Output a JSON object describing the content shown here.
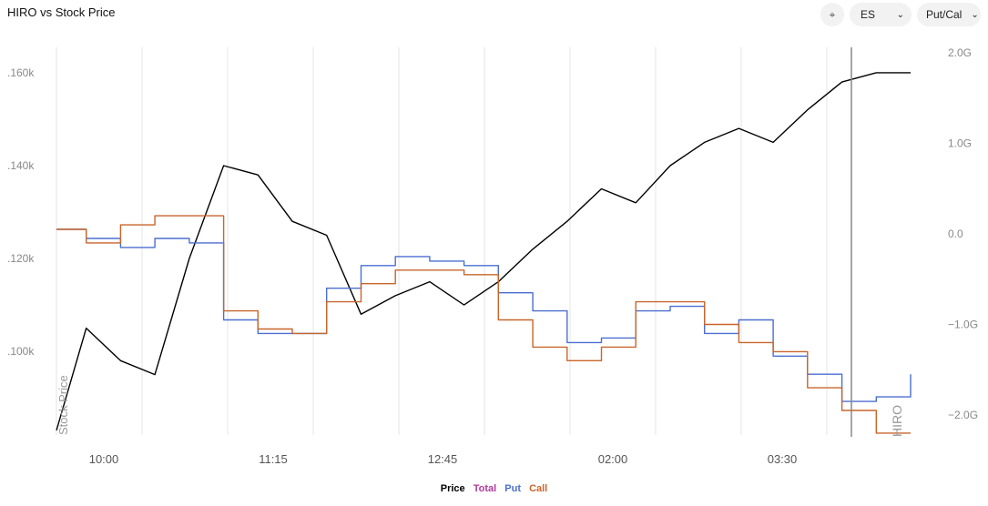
{
  "title": "HIRO vs Stock Price",
  "toolbar": {
    "collapse_icon": "collapse-icon",
    "symbol": "ES",
    "mode": "Put/Cal"
  },
  "colors": {
    "price": "#000000",
    "total": "#b03a9e",
    "put": "#4a6fd0",
    "call": "#c8652a",
    "grid": "#e4e4e4",
    "axis_text": "#888888",
    "cursor": "#888888"
  },
  "chart_data": {
    "type": "line",
    "x_ticks": [
      "10:00",
      "11:15",
      "12:45",
      "02:00",
      "03:30"
    ],
    "y_left": {
      "label": "Stock Price",
      "ticks": [
        ".160k",
        ".140k",
        ".120k",
        ".100k"
      ]
    },
    "y_right": {
      "label": "HIRO",
      "ticks": [
        "2.0G",
        "1.0G",
        "0.0",
        "−1.0G",
        "−2.0G"
      ]
    },
    "legend": [
      "Price",
      "Total",
      "Put",
      "Call"
    ],
    "legend_position": "bottom",
    "grid": "vertical",
    "x": [
      "09:32",
      "09:45",
      "10:00",
      "10:15",
      "10:30",
      "10:45",
      "11:00",
      "11:15",
      "11:30",
      "11:45",
      "12:00",
      "12:15",
      "12:30",
      "12:45",
      "13:00",
      "13:15",
      "13:30",
      "13:45",
      "14:00",
      "14:15",
      "14:30",
      "14:45",
      "15:00",
      "15:15",
      "15:30",
      "15:45"
    ],
    "series": [
      {
        "name": "Price",
        "axis": "left",
        "values": [
          0.083,
          0.105,
          0.098,
          0.095,
          0.12,
          0.14,
          0.138,
          0.128,
          0.125,
          0.108,
          0.112,
          0.115,
          0.11,
          0.115,
          0.122,
          0.128,
          0.135,
          0.132,
          0.14,
          0.145,
          0.148,
          0.145,
          0.152,
          0.158,
          0.16,
          0.16
        ]
      },
      {
        "name": "Put",
        "axis": "right",
        "values": [
          0.05,
          -0.05,
          -0.15,
          -0.05,
          -0.1,
          -0.95,
          -1.1,
          -1.1,
          -0.6,
          -0.35,
          -0.25,
          -0.3,
          -0.35,
          -0.65,
          -0.85,
          -1.2,
          -1.15,
          -0.85,
          -0.8,
          -1.1,
          -0.95,
          -1.35,
          -1.55,
          -1.85,
          -1.8,
          -1.55
        ]
      },
      {
        "name": "Call",
        "axis": "right",
        "values": [
          0.05,
          -0.1,
          0.1,
          0.2,
          0.2,
          -0.85,
          -1.05,
          -1.1,
          -0.75,
          -0.55,
          -0.4,
          -0.4,
          -0.45,
          -0.95,
          -1.25,
          -1.4,
          -1.25,
          -0.75,
          -0.75,
          -1.0,
          -1.2,
          -1.3,
          -1.7,
          -1.95,
          -2.2,
          -2.2
        ]
      }
    ]
  }
}
